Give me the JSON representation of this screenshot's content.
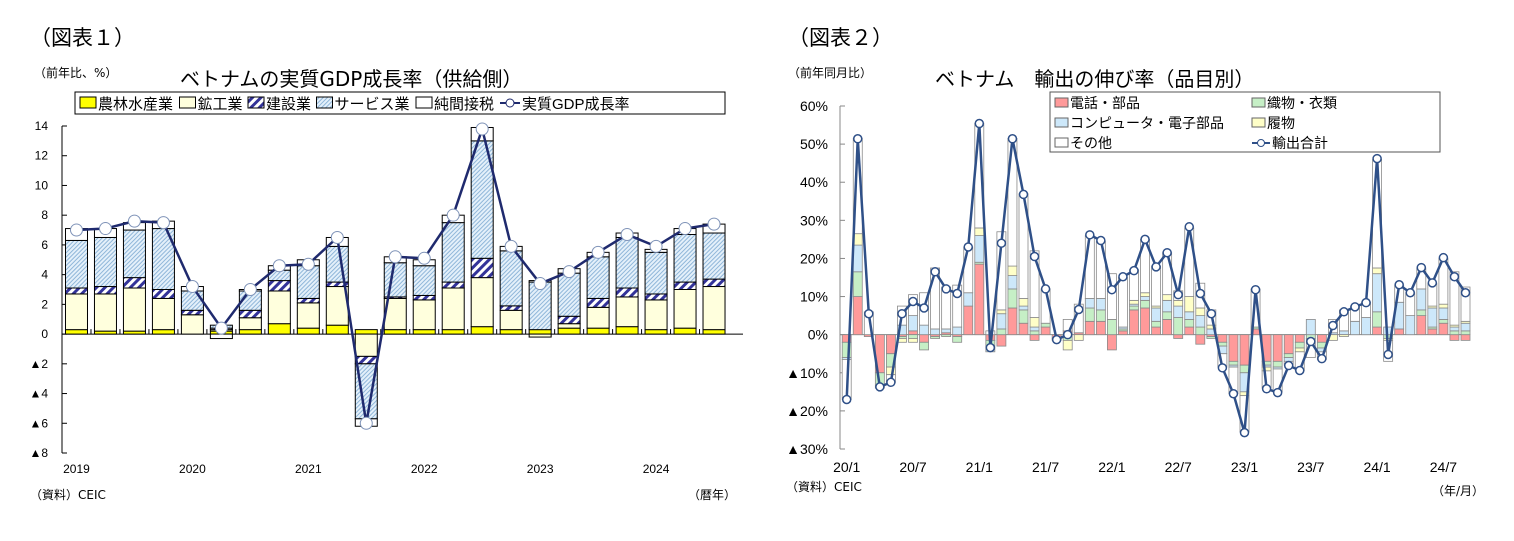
{
  "figure1": {
    "label": "（図表１）",
    "unit": "（前年比、%）",
    "source": "（資料）CEIC",
    "x_unit": "（暦年）"
  },
  "figure2": {
    "label": "（図表２）",
    "unit": "（前年同月比）",
    "source": "（資料）CEIC",
    "x_unit": "（年/月）"
  },
  "chart_data": [
    {
      "type": "bar",
      "stacked": true,
      "title": "ベトナムの実質GDP成長率（供給側）",
      "ylim": [
        -8,
        14
      ],
      "yticks": [
        14,
        12,
        10,
        8,
        6,
        4,
        2,
        0,
        -2,
        -4,
        -6,
        -8
      ],
      "ytick_labels": [
        "14",
        "12",
        "10",
        "8",
        "6",
        "4",
        "2",
        "0",
        "▲2",
        "▲4",
        "▲6",
        "▲8"
      ],
      "x_tick_labels": [
        "2019",
        "2020",
        "2021",
        "2022",
        "2023",
        "2024"
      ],
      "categories": [
        "2019Q1",
        "2019Q2",
        "2019Q3",
        "2019Q4",
        "2020Q1",
        "2020Q2",
        "2020Q3",
        "2020Q4",
        "2021Q1",
        "2021Q2",
        "2021Q3",
        "2021Q4",
        "2022Q1",
        "2022Q2",
        "2022Q3",
        "2022Q4",
        "2023Q1",
        "2023Q2",
        "2023Q3",
        "2023Q4",
        "2024Q1",
        "2024Q2",
        "2024Q3"
      ],
      "legend_placement": "top",
      "series": [
        {
          "name": "農林水産業",
          "color": "#ffff00",
          "values": [
            0.3,
            0.2,
            0.2,
            0.3,
            0.0,
            0.2,
            0.3,
            0.7,
            0.4,
            0.6,
            0.3,
            0.3,
            0.3,
            0.3,
            0.5,
            0.3,
            0.3,
            0.4,
            0.4,
            0.5,
            0.3,
            0.4,
            0.3
          ]
        },
        {
          "name": "鉱工業",
          "color": "#ffffdd",
          "values": [
            2.4,
            2.5,
            2.9,
            2.1,
            1.3,
            0.1,
            0.8,
            2.2,
            1.7,
            2.6,
            -1.5,
            2.1,
            2.0,
            2.8,
            3.3,
            1.3,
            -0.2,
            0.3,
            1.4,
            2.0,
            2.0,
            2.6,
            2.9
          ]
        },
        {
          "name": "建設業",
          "color": "#333399",
          "pattern": "hatch-dark",
          "values": [
            0.4,
            0.5,
            0.7,
            0.6,
            0.3,
            0.1,
            0.5,
            0.7,
            0.3,
            0.3,
            -0.5,
            0.1,
            0.3,
            0.4,
            1.3,
            0.3,
            0.0,
            0.5,
            0.6,
            0.6,
            0.4,
            0.5,
            0.5
          ]
        },
        {
          "name": "サービス業",
          "color": "#9dc3e6",
          "pattern": "hatch-light",
          "values": [
            3.2,
            3.3,
            3.2,
            4.1,
            1.3,
            0.2,
            1.3,
            0.7,
            2.2,
            2.4,
            -3.7,
            2.3,
            2.0,
            4.0,
            7.9,
            3.7,
            3.2,
            2.9,
            2.8,
            3.4,
            2.8,
            3.2,
            3.1
          ]
        },
        {
          "name": "純間接税",
          "color": "#ffffff",
          "values": [
            0.8,
            0.6,
            0.5,
            0.5,
            0.3,
            -0.3,
            0.1,
            0.3,
            0.4,
            0.6,
            -0.5,
            0.4,
            0.4,
            0.5,
            0.9,
            0.3,
            0.1,
            0.3,
            0.3,
            0.3,
            0.2,
            0.4,
            0.6
          ]
        }
      ],
      "line": {
        "name": "実質GDP成長率",
        "color": "#1f2a6e",
        "values": [
          7.0,
          7.1,
          7.6,
          7.5,
          3.2,
          0.4,
          3.0,
          4.6,
          4.7,
          6.5,
          -6.0,
          5.2,
          5.1,
          8.0,
          13.8,
          5.9,
          3.4,
          4.2,
          5.5,
          6.7,
          5.9,
          7.1,
          7.4
        ]
      }
    },
    {
      "type": "bar",
      "stacked": true,
      "title": "ベトナム　輸出の伸び率（品目別）",
      "ylim": [
        -30,
        60
      ],
      "yticks": [
        60,
        50,
        40,
        30,
        20,
        10,
        0,
        -10,
        -20,
        -30
      ],
      "ytick_labels": [
        "60%",
        "50%",
        "40%",
        "30%",
        "20%",
        "10%",
        "0%",
        "▲10%",
        "▲20%",
        "▲30%"
      ],
      "x_tick_labels": [
        "20/1",
        "20/7",
        "21/1",
        "21/7",
        "22/1",
        "22/7",
        "23/1",
        "23/7",
        "24/1",
        "24/7"
      ],
      "x_start": "2020/1",
      "x_end": "2024/9",
      "legend_placement": "top-right",
      "series": [
        {
          "name": "電話・部品",
          "color": "#ff9a9a",
          "values": [
            -2,
            10,
            -0.5,
            -10,
            -5,
            -0.5,
            1,
            -2,
            -0.5,
            0.5,
            -0.5,
            7.5,
            18.5,
            -1.5,
            -3,
            7,
            3,
            -1.5,
            2,
            -1,
            1,
            0.5,
            3.5,
            3.5,
            -4,
            1,
            6.5,
            7,
            2,
            4,
            -1,
            2,
            -2.5,
            -0.5,
            -2,
            -7,
            -8,
            1.5,
            -7,
            -7,
            -5,
            -2,
            0,
            -2,
            0,
            0,
            0,
            0,
            2,
            0,
            1.5,
            0,
            5,
            1.5,
            3,
            -1.5,
            -1.5
          ]
        },
        {
          "name": "織物・衣類",
          "color": "#c6efc6",
          "values": [
            -4,
            6.5,
            0,
            -3.5,
            -3.5,
            -0.5,
            -1,
            -2,
            -0.5,
            -0.5,
            -1.5,
            0,
            0.5,
            -2,
            1.5,
            5,
            3.5,
            1,
            1,
            0,
            -1.5,
            0,
            3.5,
            3,
            4,
            0.5,
            1,
            2,
            1.5,
            2,
            4.5,
            2,
            2,
            -0.5,
            -1,
            -1,
            -2,
            0.5,
            -1,
            -1.5,
            -1,
            -1.5,
            -1,
            -1.5,
            0,
            0,
            0,
            0,
            4,
            -1,
            0,
            0,
            1.5,
            0.5,
            1,
            1,
            1
          ]
        },
        {
          "name": "コンピュータ・電子部品",
          "color": "#cde8fa",
          "values": [
            -0.5,
            7,
            0,
            0,
            0,
            2.5,
            4,
            2.5,
            1.5,
            1,
            2,
            3.5,
            7,
            -1,
            4,
            3.5,
            1,
            1,
            0,
            0,
            0,
            0,
            2.5,
            3,
            0,
            0.5,
            0.5,
            1,
            3.5,
            3,
            3,
            2,
            3,
            1.5,
            -2,
            -0.5,
            -5,
            0,
            -0.5,
            -0.5,
            -1,
            0,
            4,
            -1,
            0.5,
            1,
            3.5,
            4.5,
            10,
            2,
            7,
            5,
            5.5,
            5,
            3,
            1,
            2
          ]
        },
        {
          "name": "履物",
          "color": "#ffffc8",
          "values": [
            0,
            3,
            0,
            0,
            -2,
            -1,
            -1,
            0,
            0,
            0,
            0,
            0,
            2,
            0,
            1,
            2.5,
            2,
            2.5,
            0,
            -0.5,
            -2.5,
            -1.5,
            0,
            0,
            0,
            0,
            1,
            1,
            0.5,
            1.5,
            1.5,
            4,
            2,
            1,
            0,
            0,
            -1,
            0,
            -1,
            0,
            0,
            -1,
            0,
            0,
            -1.5,
            -0.5,
            0,
            0,
            1.5,
            -0.5,
            0,
            0,
            0,
            0.5,
            1,
            0.5,
            0.5
          ]
        },
        {
          "name": "その他",
          "color": "#ffffff",
          "values": [
            -10.5,
            25,
            6,
            -0.5,
            -2,
            5,
            5.5,
            8.5,
            16,
            11,
            11,
            12,
            27.5,
            1,
            20.5,
            33.5,
            27.5,
            17.5,
            9,
            0,
            3,
            7.5,
            16.5,
            15,
            12,
            13,
            8,
            14,
            10.5,
            11,
            2.5,
            18,
            6.5,
            4,
            -3.5,
            -7,
            -9.5,
            10,
            -4.5,
            -6,
            -1,
            -5,
            -5,
            -2,
            3.5,
            5.5,
            4,
            4,
            28.5,
            -5.5,
            4.5,
            6,
            5.5,
            6,
            12,
            14,
            9
          ]
        }
      ],
      "line": {
        "name": "輸出合計",
        "color": "#2f5088",
        "values": [
          -17,
          51.4,
          5.5,
          -13.7,
          -12.5,
          5.5,
          8.7,
          7,
          16.5,
          12,
          10.8,
          23,
          55.4,
          -3.4,
          24,
          51.4,
          36.8,
          20.5,
          12,
          -1.3,
          0,
          6.6,
          26.2,
          24.7,
          11.8,
          15.2,
          16.8,
          25,
          17.8,
          21.5,
          10.5,
          28.3,
          10.8,
          5.5,
          -8.7,
          -15.5,
          -25.7,
          11.8,
          -14.2,
          -15.2,
          -8.1,
          -9.4,
          -1.8,
          -6.3,
          2.4,
          6,
          7.3,
          8.4,
          46.2,
          -5.2,
          13.1,
          11,
          17.6,
          13.6,
          20.2,
          15.2,
          11
        ]
      }
    }
  ]
}
